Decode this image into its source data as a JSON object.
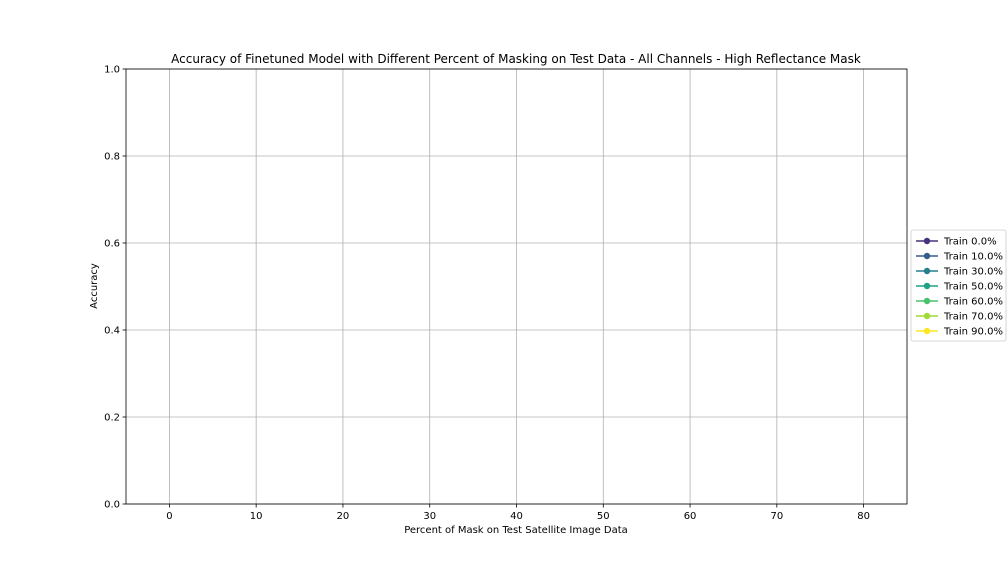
{
  "chart_data": {
    "type": "line",
    "title": "Accuracy of Finetuned Model with Different Percent of Masking on Test Data - All Channels - High Reflectance Mask",
    "xlabel": "Percent of Mask on Test Satellite Image Data",
    "ylabel": "Accuracy",
    "xlim": [
      -5,
      85
    ],
    "ylim": [
      0.0,
      1.0
    ],
    "x_ticks": [
      0,
      10,
      20,
      30,
      40,
      50,
      60,
      70,
      80
    ],
    "y_ticks": [
      0.0,
      0.2,
      0.4,
      0.6,
      0.8,
      1.0
    ],
    "x_tick_labels": [
      "0",
      "10",
      "20",
      "30",
      "40",
      "50",
      "60",
      "70",
      "80"
    ],
    "y_tick_labels": [
      "0.0",
      "0.2",
      "0.4",
      "0.6",
      "0.8",
      "1.0"
    ],
    "grid": true,
    "legend_position": "right-outside",
    "series": [
      {
        "name": "Train 0.0%",
        "color": "#46327e",
        "x": [],
        "y": []
      },
      {
        "name": "Train 10.0%",
        "color": "#365c8d",
        "x": [],
        "y": []
      },
      {
        "name": "Train 30.0%",
        "color": "#277f8e",
        "x": [],
        "y": []
      },
      {
        "name": "Train 50.0%",
        "color": "#1fa187",
        "x": [],
        "y": []
      },
      {
        "name": "Train 60.0%",
        "color": "#4ac16d",
        "x": [],
        "y": []
      },
      {
        "name": "Train 70.0%",
        "color": "#a0da39",
        "x": [],
        "y": []
      },
      {
        "name": "Train 90.0%",
        "color": "#fde725",
        "x": [],
        "y": []
      }
    ]
  }
}
